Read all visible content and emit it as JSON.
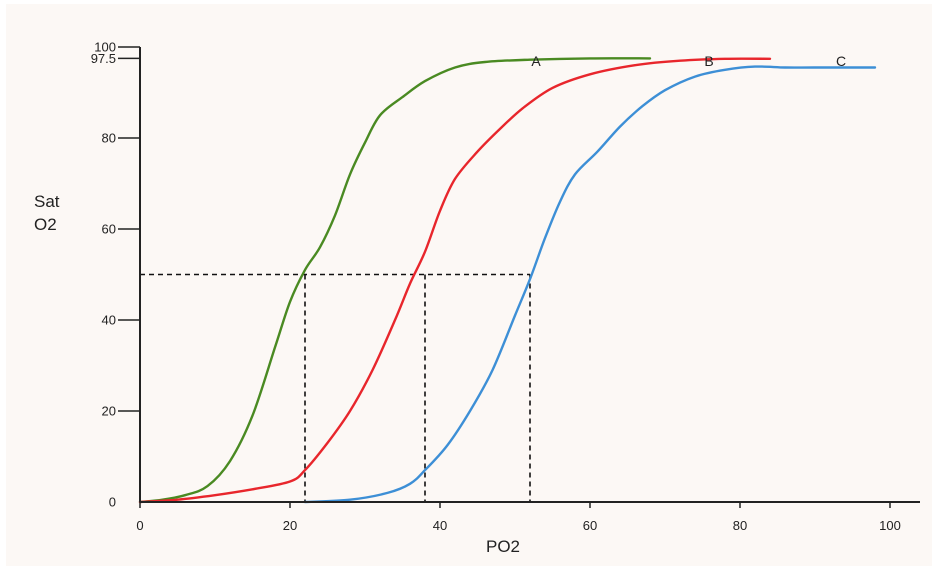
{
  "chart_data": {
    "type": "line",
    "title": "",
    "xlabel": "PO2",
    "ylabel_lines": [
      "Sat",
      "O2"
    ],
    "xlim": [
      0,
      100
    ],
    "ylim": [
      0,
      100
    ],
    "x_ticks": [
      {
        "value": 0,
        "label": "0"
      },
      {
        "value": 20,
        "label": "20"
      },
      {
        "value": 40,
        "label": "40"
      },
      {
        "value": 60,
        "label": "60"
      },
      {
        "value": 80,
        "label": "80"
      },
      {
        "value": 100,
        "label": "100"
      }
    ],
    "y_ticks": [
      {
        "value": 0,
        "label": "0"
      },
      {
        "value": 20,
        "label": "20"
      },
      {
        "value": 40,
        "label": "40"
      },
      {
        "value": 60,
        "label": "60"
      },
      {
        "value": 80,
        "label": "80"
      },
      {
        "value": 97.5,
        "label": "97.5"
      },
      {
        "value": 100,
        "label": "100"
      }
    ],
    "grid": false,
    "series": [
      {
        "name": "A",
        "color": "#4a8a22",
        "x": [
          0,
          3,
          6,
          9,
          12,
          15,
          18,
          20,
          22,
          24,
          26,
          28,
          30,
          32,
          35,
          38,
          42,
          46,
          52,
          60,
          68
        ],
        "y": [
          0,
          0.5,
          1.5,
          3.5,
          9,
          19,
          34,
          44,
          51,
          56,
          63,
          72,
          79,
          85,
          89,
          92.5,
          95.5,
          96.7,
          97.2,
          97.5,
          97.5
        ]
      },
      {
        "name": "B",
        "color": "#e8262c",
        "x": [
          0,
          5,
          10,
          15,
          20,
          22,
          25,
          28,
          31,
          34,
          36,
          38,
          40,
          42,
          45,
          48,
          51,
          55,
          60,
          66,
          72,
          78,
          84
        ],
        "y": [
          0,
          0.5,
          1.5,
          2.8,
          4.5,
          7,
          13,
          20,
          29,
          40,
          48,
          55,
          64,
          71,
          77,
          82,
          86.5,
          91,
          94,
          96,
          97,
          97.4,
          97.4
        ]
      },
      {
        "name": "C",
        "color": "#3d8fd6",
        "x": [
          22,
          28,
          33,
          36,
          38,
          41,
          44,
          47,
          50,
          52,
          54,
          56,
          58,
          61,
          64,
          67,
          70,
          74,
          78,
          82,
          86,
          90,
          98
        ],
        "y": [
          0,
          0.5,
          2,
          4,
          7,
          12.5,
          20,
          29,
          41,
          49,
          58,
          66,
          72,
          77,
          82.5,
          87,
          90.5,
          93.5,
          95,
          95.7,
          95.5,
          95.5,
          95.5
        ]
      }
    ],
    "reference_lines": {
      "y50": 50,
      "p50_x": [
        22,
        38,
        52
      ]
    }
  }
}
